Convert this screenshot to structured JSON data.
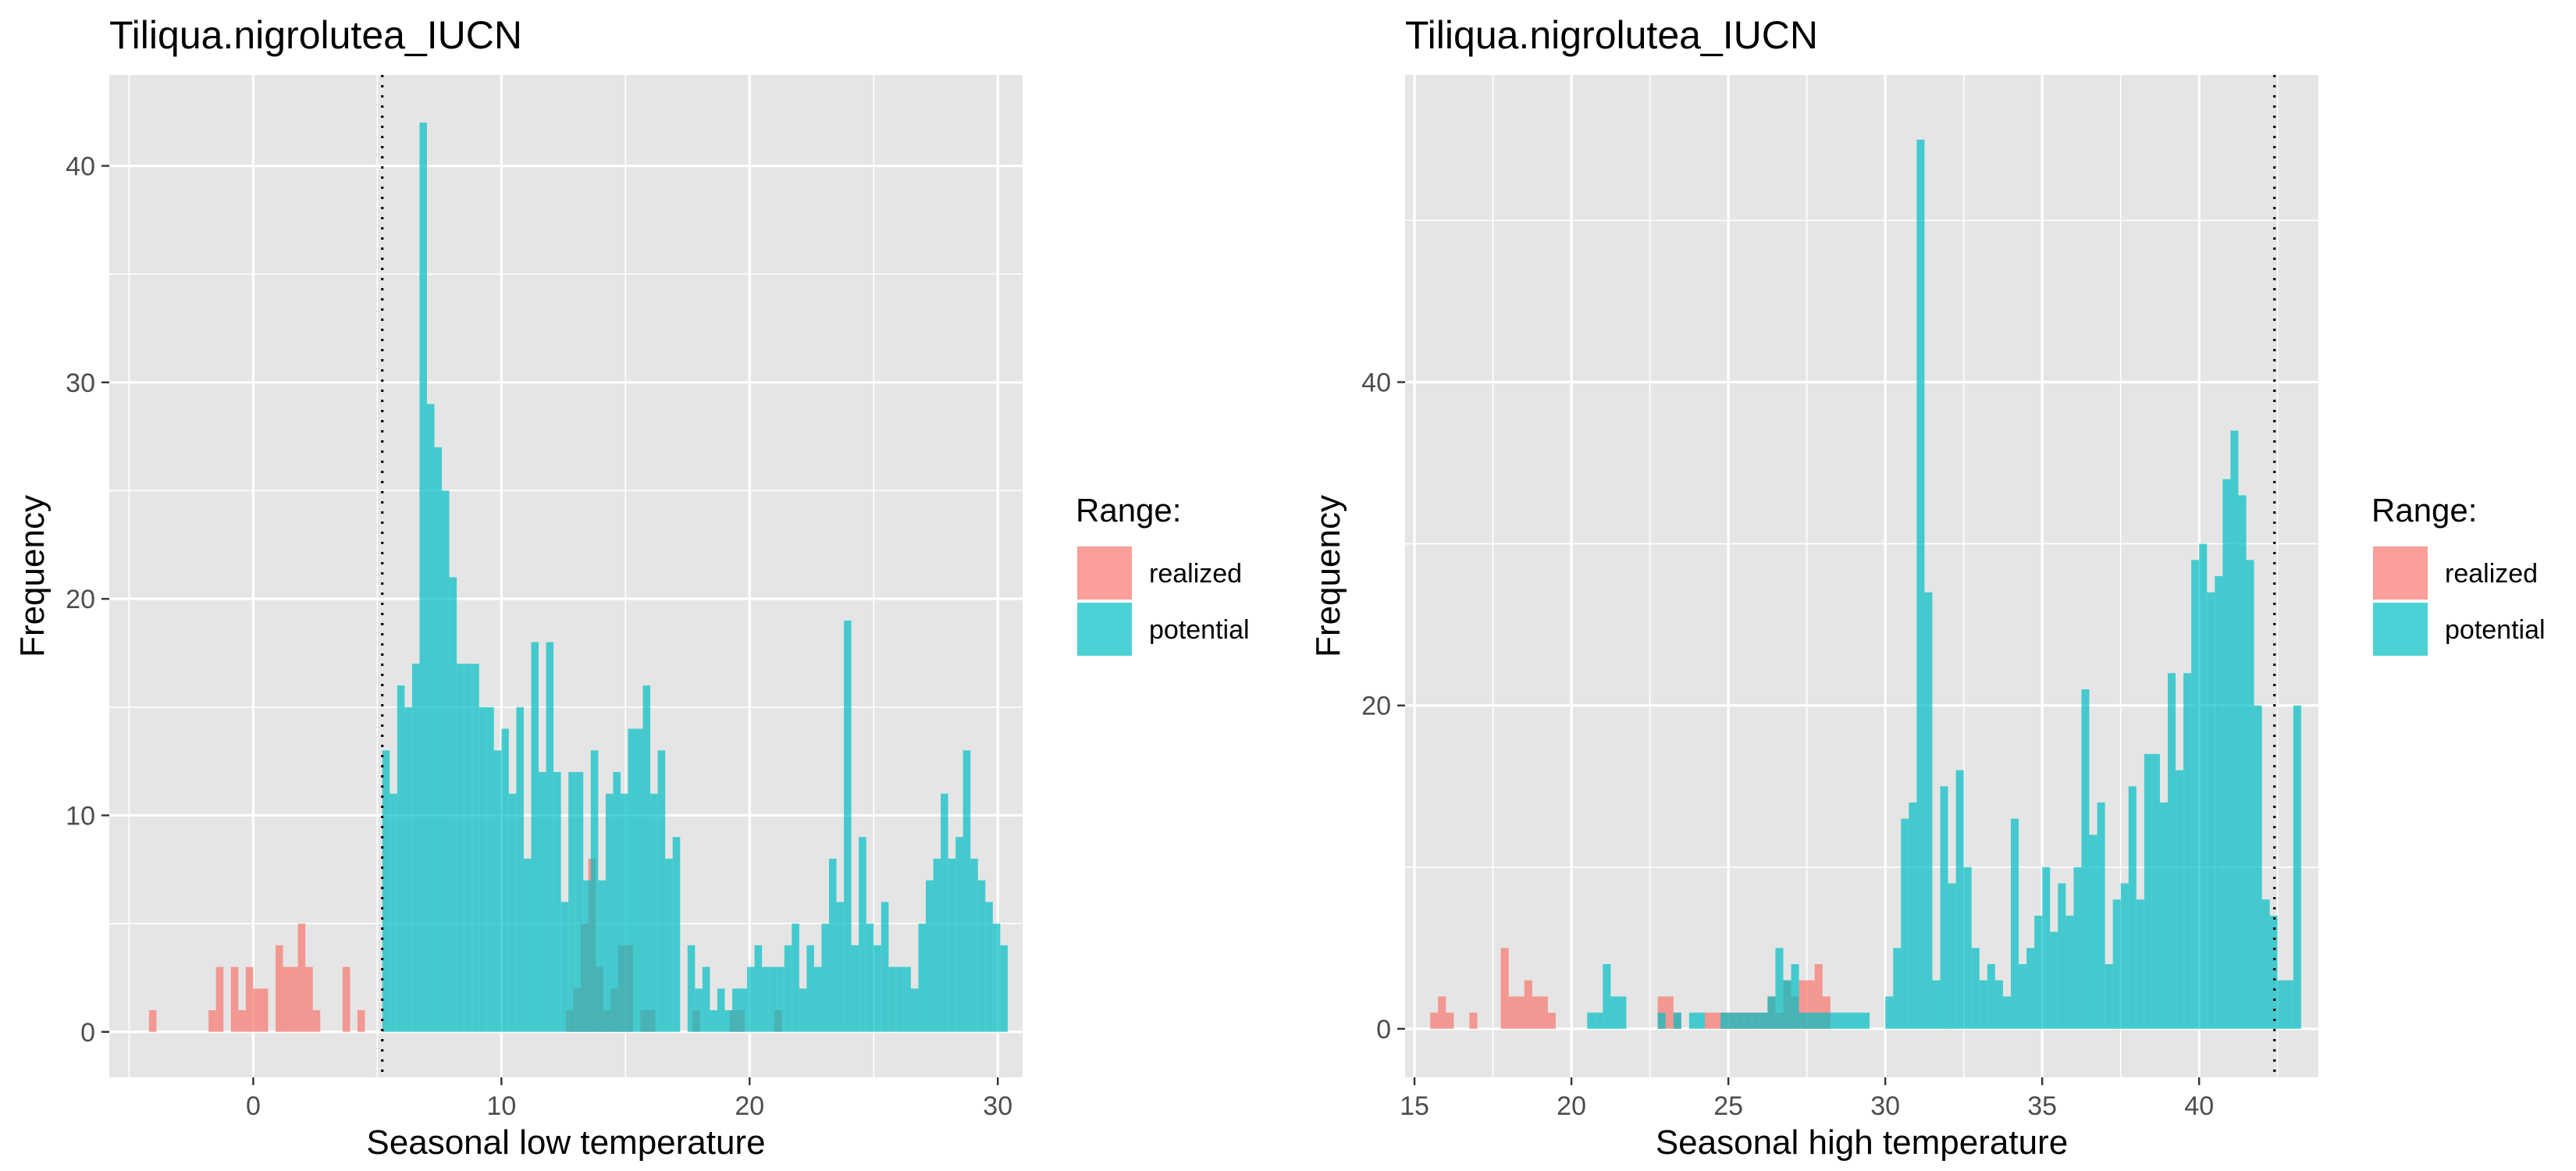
{
  "figure": {
    "colors": {
      "realized": "#F8766D",
      "potential": "#00BFC4",
      "panel_background": "#E5E5E5",
      "grid": "#FFFFFF"
    }
  },
  "chart_data": [
    {
      "type": "histogram",
      "title": "Tiliqua.nigrolutea_IUCN",
      "xlabel": "Seasonal low temperature",
      "ylabel": "Frequency",
      "xlim": [
        -5.8,
        31.0
      ],
      "ylim": [
        -2.1,
        44.2
      ],
      "x_ticks": [
        0,
        10,
        20,
        30
      ],
      "y_ticks": [
        0,
        10,
        20,
        30,
        40
      ],
      "grid": true,
      "legend": {
        "title": "Range:",
        "position": "right",
        "entries": [
          "realized",
          "potential"
        ]
      },
      "threshold_line": {
        "x": 5.2,
        "style": "dotted"
      },
      "bin_width": 0.3,
      "series": [
        {
          "name": "realized",
          "color": "#F8766D",
          "opacity": 0.7,
          "x_start": -4.2,
          "values": [
            1,
            0,
            0,
            0,
            0,
            0,
            0,
            0,
            1,
            3,
            0,
            3,
            1,
            3,
            2,
            2,
            0,
            4,
            3,
            3,
            5,
            3,
            1,
            0,
            0,
            0,
            3,
            0,
            1,
            0,
            0,
            0,
            0,
            0,
            0,
            0,
            0,
            0,
            0,
            0,
            0,
            0,
            0,
            0,
            0,
            0,
            0,
            0,
            0,
            0,
            0,
            0,
            0,
            0,
            0,
            0,
            1,
            2,
            5,
            8,
            3,
            1,
            2,
            4,
            4,
            0,
            1,
            1,
            0,
            0,
            0,
            0,
            0,
            1,
            0,
            0,
            0,
            0,
            1,
            1,
            0,
            0,
            0,
            0,
            1
          ]
        },
        {
          "name": "potential",
          "color": "#00BFC4",
          "opacity": 0.7,
          "x_start": 5.2,
          "values": [
            13,
            11,
            16,
            15,
            17,
            42,
            29,
            27,
            25,
            21,
            17,
            17,
            17,
            15,
            15,
            13,
            14,
            11,
            15,
            8,
            18,
            12,
            18,
            12,
            6,
            12,
            12,
            7,
            13,
            7,
            11,
            12,
            11,
            14,
            14,
            16,
            11,
            13,
            8,
            9,
            0,
            4,
            2,
            3,
            1,
            2,
            1,
            2,
            2,
            3,
            4,
            3,
            3,
            3,
            4,
            5,
            2,
            4,
            3,
            5,
            8,
            6,
            19,
            4,
            9,
            5,
            4,
            6,
            3,
            3,
            3,
            2,
            5,
            7,
            8,
            11,
            8,
            9,
            13,
            8,
            7,
            6,
            5,
            4
          ]
        }
      ]
    },
    {
      "type": "histogram",
      "title": "Tiliqua.nigrolutea_IUCN",
      "xlabel": "Seasonal high temperature",
      "ylabel": "Frequency",
      "xlim": [
        14.7,
        43.8
      ],
      "ylim": [
        -3.0,
        59.0
      ],
      "x_ticks": [
        15,
        20,
        25,
        30,
        35,
        40
      ],
      "y_ticks": [
        0,
        20,
        40
      ],
      "grid": true,
      "legend": {
        "title": "Range:",
        "position": "right",
        "entries": [
          "realized",
          "potential"
        ]
      },
      "threshold_line": {
        "x": 42.4,
        "style": "dotted"
      },
      "bin_width": 0.25,
      "series": [
        {
          "name": "realized",
          "color": "#F8766D",
          "opacity": 0.7,
          "x_start": 15.5,
          "values": [
            1,
            2,
            1,
            0,
            0,
            1,
            0,
            0,
            0,
            5,
            2,
            2,
            3,
            2,
            2,
            1,
            0,
            0,
            0,
            0,
            0,
            0,
            0,
            0,
            0,
            0,
            0,
            0,
            0,
            2,
            2,
            1,
            0,
            0,
            0,
            1,
            1,
            1,
            1,
            1,
            1,
            1,
            1,
            2,
            1,
            3,
            2,
            3,
            3,
            4,
            2
          ]
        },
        {
          "name": "potential",
          "color": "#00BFC4",
          "opacity": 0.7,
          "x_start": 20.5,
          "values": [
            1,
            1,
            4,
            2,
            2,
            0,
            0,
            0,
            0,
            1,
            0,
            1,
            0,
            1,
            1,
            0,
            0,
            1,
            1,
            1,
            1,
            1,
            1,
            2,
            5,
            3,
            4,
            1,
            1,
            1,
            1,
            1,
            1,
            1,
            1,
            1,
            0,
            0,
            2,
            5,
            13,
            14,
            55,
            27,
            3,
            15,
            9,
            16,
            10,
            5,
            3,
            4,
            3,
            2,
            13,
            4,
            5,
            7,
            10,
            6,
            9,
            7,
            10,
            21,
            12,
            14,
            4,
            8,
            9,
            15,
            8,
            17,
            17,
            14,
            22,
            16,
            22,
            29,
            30,
            27,
            28,
            34,
            37,
            33,
            29,
            20,
            8,
            7,
            3,
            3,
            20
          ]
        }
      ]
    }
  ]
}
